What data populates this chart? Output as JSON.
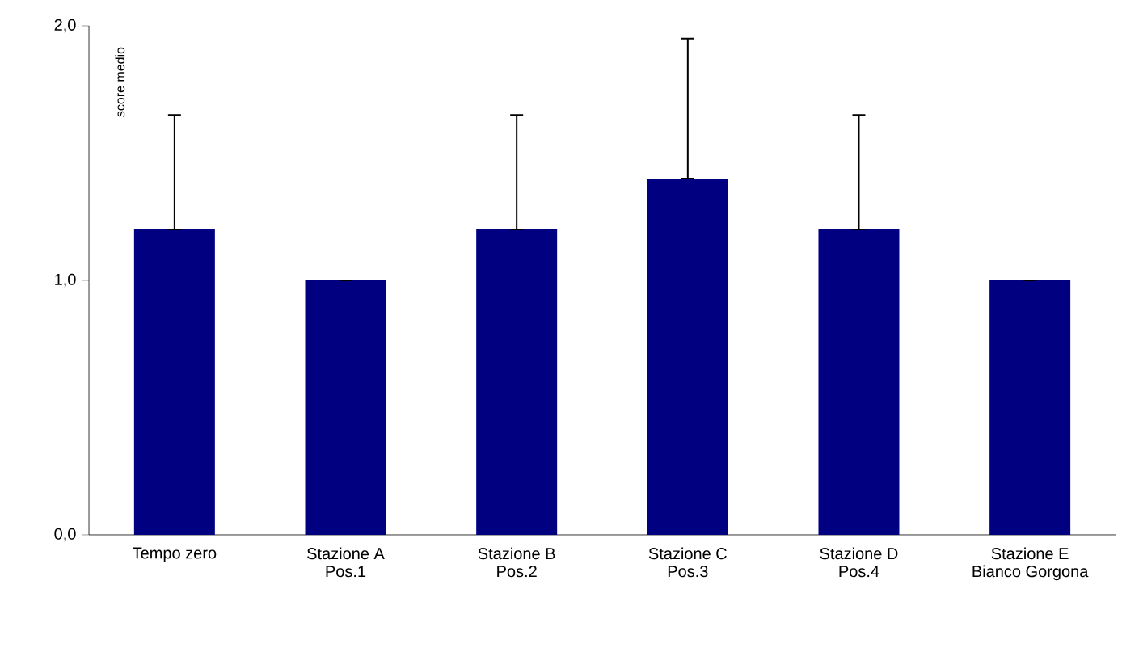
{
  "chart_data": {
    "type": "bar",
    "ylabel": "score medio",
    "categories": [
      "Tempo zero",
      "Stazione A Pos.1",
      "Stazione B Pos.2",
      "Stazione C Pos.3",
      "Stazione D Pos.4",
      "Stazione E Bianco Gorgona"
    ],
    "values": [
      1.2,
      1.0,
      1.2,
      1.4,
      1.2,
      1.0
    ],
    "errors": [
      [
        1.2,
        1.65
      ],
      [
        1.0,
        1.0
      ],
      [
        1.2,
        1.65
      ],
      [
        1.4,
        1.95
      ],
      [
        1.2,
        1.65
      ],
      [
        1.0,
        1.0
      ]
    ],
    "color": "#000080",
    "yticks": [
      {
        "value": 0,
        "label": "0,0"
      },
      {
        "value": 1,
        "label": "1,0"
      },
      {
        "value": 2,
        "label": "2,0"
      }
    ],
    "ylim": [
      0,
      2
    ]
  }
}
